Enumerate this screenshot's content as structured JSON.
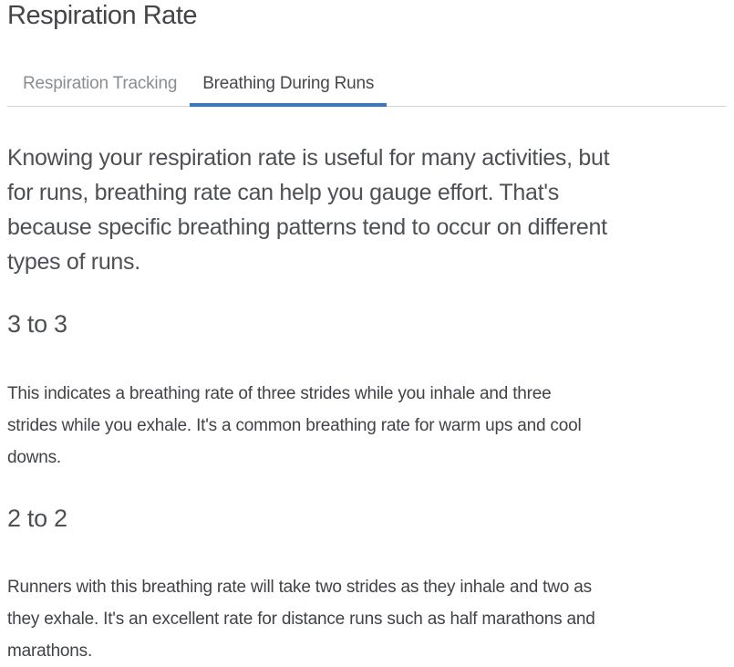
{
  "page": {
    "title": "Respiration Rate"
  },
  "tabs": [
    {
      "label": "Respiration Tracking",
      "active": false
    },
    {
      "label": "Breathing During Runs",
      "active": true
    }
  ],
  "content": {
    "intro": "Knowing your respiration rate is useful for many activities, but\nfor runs, breathing rate can help you gauge effort. That's\nbecause specific breathing patterns tend to occur on different\ntypes of runs.",
    "sections": [
      {
        "heading": "3 to 3",
        "body": "This indicates a breathing rate of three strides while you inhale and three\nstrides while you exhale. It's a common breathing rate for warm ups and cool\ndowns."
      },
      {
        "heading": "2 to 2",
        "body": "Runners with this breathing rate will take two strides as they inhale and two as\nthey exhale. It's an excellent rate for distance runs such as half marathons and\nmarathons."
      }
    ]
  },
  "colors": {
    "active_tab_underline": "#3678c1",
    "divider": "#d5d5d6",
    "title_text": "#434549",
    "inactive_tab_text": "#8a8e93",
    "active_tab_text": "#46484c",
    "body_text": "#404348"
  }
}
